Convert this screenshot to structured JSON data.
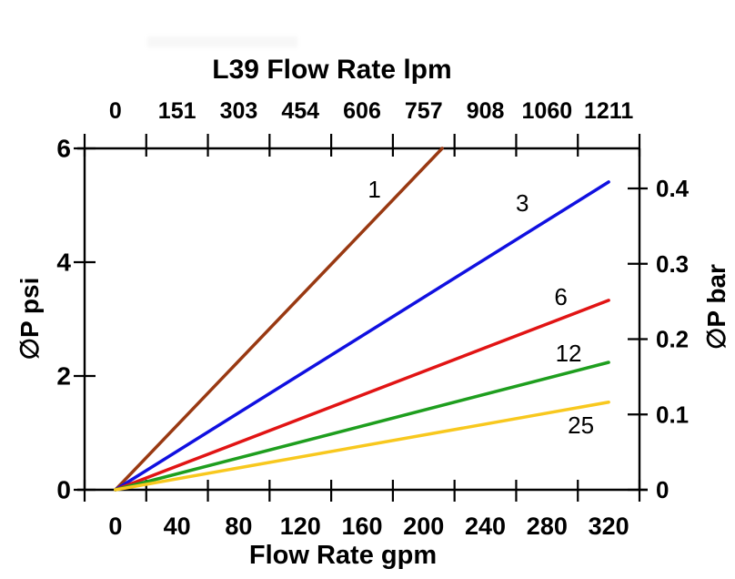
{
  "header": {
    "title": "L39 Flow Rate lpm"
  },
  "axes": {
    "top": {
      "label": "L39 Flow Rate lpm",
      "ticks": [
        "0",
        "151",
        "303",
        "454",
        "606",
        "757",
        "908",
        "1060",
        "1211"
      ]
    },
    "bottom": {
      "label": "Flow Rate gpm",
      "ticks": [
        "0",
        "40",
        "80",
        "120",
        "160",
        "200",
        "240",
        "280",
        "320"
      ]
    },
    "left": {
      "label": "∅P psi",
      "ticks": [
        "0",
        "2",
        "4",
        "6"
      ],
      "tick_values": [
        0,
        2,
        4,
        6
      ]
    },
    "right": {
      "label": "∅P bar",
      "ticks": [
        "0",
        "0.1",
        "0.2",
        "0.3",
        "0.4"
      ],
      "tick_values": [
        0,
        0.1,
        0.2,
        0.3,
        0.4
      ]
    }
  },
  "chart_data": {
    "type": "line",
    "title": "L39 Flow Rate lpm",
    "xlabel": "Flow Rate gpm",
    "xlabel_secondary_top": "L39 Flow Rate lpm",
    "ylabel": "∅P psi",
    "ylabel_secondary_right": "∅P bar",
    "x_range_gpm": [
      0,
      320
    ],
    "x_range_lpm": [
      0,
      1211
    ],
    "ylim_psi": [
      0,
      6
    ],
    "ylim_bar": [
      0,
      0.4
    ],
    "grid": false,
    "legend": "inline-curve-labels",
    "series": [
      {
        "name": "1",
        "color": "#993912",
        "points_gpm_psi": [
          [
            0,
            0
          ],
          [
            212,
            6.0
          ]
        ],
        "label_pos": {
          "gpm": 168,
          "psi": 5.28
        }
      },
      {
        "name": "3",
        "color": "#1010E0",
        "points_gpm_psi": [
          [
            0,
            0
          ],
          [
            320,
            5.41
          ]
        ],
        "label_pos": {
          "gpm": 264,
          "psi": 5.04
        }
      },
      {
        "name": "6",
        "color": "#E11414",
        "points_gpm_psi": [
          [
            0,
            0
          ],
          [
            320,
            3.33
          ]
        ],
        "label_pos": {
          "gpm": 289,
          "psi": 3.39
        }
      },
      {
        "name": "12",
        "color": "#1E9E1E",
        "points_gpm_psi": [
          [
            0,
            0
          ],
          [
            320,
            2.24
          ]
        ],
        "label_pos": {
          "gpm": 294,
          "psi": 2.4
        }
      },
      {
        "name": "25",
        "color": "#F8C81E",
        "points_gpm_psi": [
          [
            0,
            0
          ],
          [
            320,
            1.54
          ]
        ],
        "label_pos": {
          "gpm": 302,
          "psi": 1.14
        }
      }
    ]
  }
}
